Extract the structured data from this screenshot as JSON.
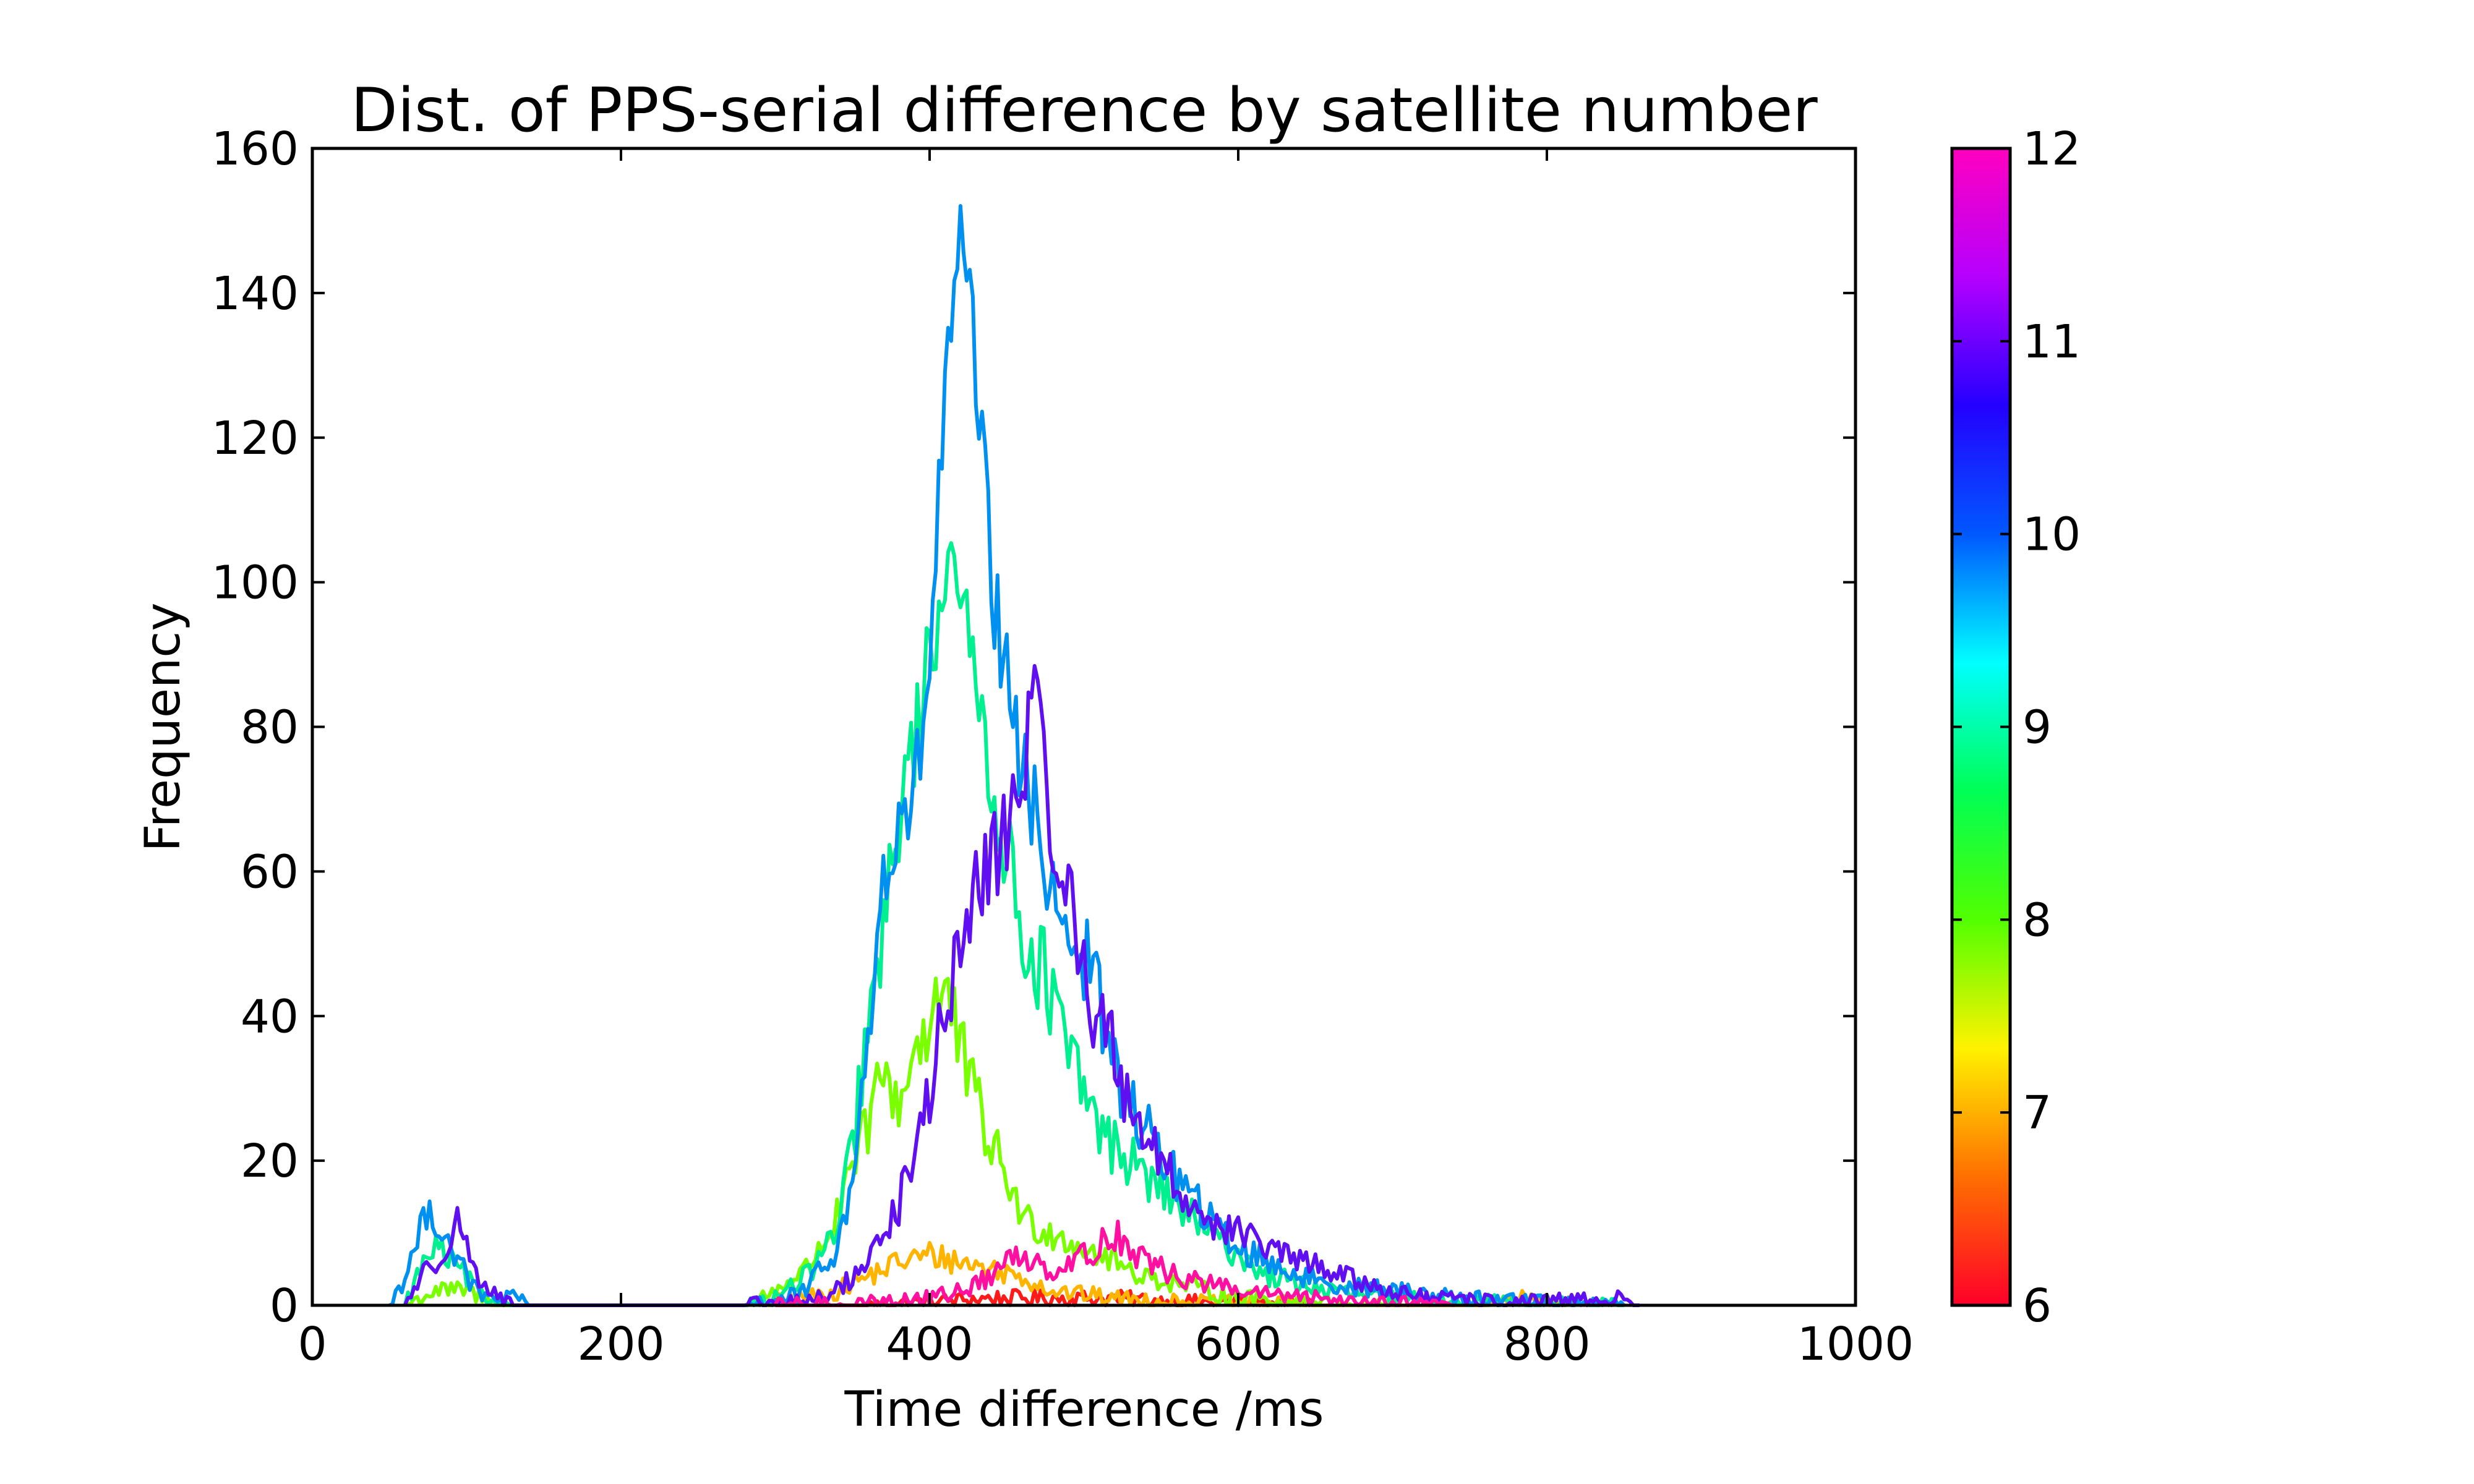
{
  "chart_data": {
    "type": "line",
    "title": "Dist. of PPS-serial difference by satellite number",
    "xlabel": "Time difference /ms",
    "ylabel": "Frequency",
    "xlim": [
      0,
      1000
    ],
    "ylim": [
      0,
      160
    ],
    "xticks": [
      "0",
      "200",
      "400",
      "600",
      "800",
      "1000"
    ],
    "yticks": [
      "0",
      "20",
      "40",
      "60",
      "80",
      "100",
      "120",
      "140",
      "160"
    ],
    "grid": false,
    "legend": "none",
    "colorbar": {
      "range": [
        6,
        12
      ],
      "ticks": [
        "6",
        "7",
        "8",
        "9",
        "10",
        "11",
        "12"
      ],
      "colormap": "gist_rainbow",
      "stops": [
        "#ff0029",
        "#ff6f00",
        "#fff200",
        "#52ff00",
        "#00ff55",
        "#00ffff",
        "#0058ff",
        "#2400ff",
        "#b500ff",
        "#ff00bf"
      ]
    },
    "series": [
      {
        "satellites": 6,
        "color": "#ff1a1a",
        "points": [
          [
            300,
            0
          ],
          [
            360,
            0
          ],
          [
            400,
            0.5
          ],
          [
            440,
            1
          ],
          [
            480,
            1
          ],
          [
            520,
            1
          ],
          [
            560,
            0.5
          ],
          [
            600,
            0.3
          ],
          [
            650,
            0
          ],
          [
            700,
            0
          ]
        ]
      },
      {
        "satellites": 7,
        "color": "#ffb400",
        "points": [
          [
            280,
            0
          ],
          [
            300,
            0.5
          ],
          [
            320,
            1
          ],
          [
            340,
            2
          ],
          [
            360,
            4
          ],
          [
            380,
            6
          ],
          [
            400,
            7
          ],
          [
            420,
            6
          ],
          [
            440,
            5
          ],
          [
            460,
            4
          ],
          [
            480,
            2
          ],
          [
            500,
            1.5
          ],
          [
            520,
            1
          ],
          [
            560,
            0.5
          ],
          [
            600,
            0.3
          ],
          [
            650,
            0
          ],
          [
            760,
            0
          ],
          [
            780,
            1
          ],
          [
            800,
            0.5
          ],
          [
            820,
            0
          ]
        ]
      },
      {
        "satellites": 8,
        "color": "#7aff00",
        "points": [
          [
            60,
            0
          ],
          [
            80,
            2
          ],
          [
            100,
            2
          ],
          [
            120,
            0
          ],
          [
            280,
            0
          ],
          [
            300,
            2
          ],
          [
            320,
            5
          ],
          [
            340,
            12
          ],
          [
            360,
            25
          ],
          [
            370,
            32
          ],
          [
            380,
            28
          ],
          [
            390,
            35
          ],
          [
            400,
            40
          ],
          [
            410,
            44
          ],
          [
            420,
            35
          ],
          [
            430,
            28
          ],
          [
            440,
            22
          ],
          [
            450,
            18
          ],
          [
            460,
            12
          ],
          [
            480,
            10
          ],
          [
            500,
            8
          ],
          [
            520,
            6
          ],
          [
            540,
            4
          ],
          [
            560,
            3
          ],
          [
            580,
            2
          ],
          [
            600,
            1
          ],
          [
            650,
            0.5
          ],
          [
            700,
            0
          ]
        ]
      },
      {
        "satellites": 9,
        "color": "#00f090",
        "points": [
          [
            60,
            0
          ],
          [
            70,
            5
          ],
          [
            80,
            8
          ],
          [
            90,
            6
          ],
          [
            100,
            4
          ],
          [
            110,
            1
          ],
          [
            130,
            0
          ],
          [
            280,
            0
          ],
          [
            300,
            1
          ],
          [
            320,
            4
          ],
          [
            340,
            10
          ],
          [
            350,
            22
          ],
          [
            360,
            38
          ],
          [
            370,
            50
          ],
          [
            380,
            68
          ],
          [
            390,
            78
          ],
          [
            400,
            90
          ],
          [
            410,
            100
          ],
          [
            415,
            112
          ],
          [
            420,
            96
          ],
          [
            430,
            86
          ],
          [
            440,
            74
          ],
          [
            450,
            62
          ],
          [
            460,
            52
          ],
          [
            470,
            48
          ],
          [
            480,
            42
          ],
          [
            490,
            34
          ],
          [
            500,
            30
          ],
          [
            510,
            24
          ],
          [
            520,
            22
          ],
          [
            540,
            18
          ],
          [
            560,
            14
          ],
          [
            580,
            10
          ],
          [
            600,
            7
          ],
          [
            620,
            4
          ],
          [
            640,
            3
          ],
          [
            660,
            2
          ],
          [
            700,
            1
          ],
          [
            750,
            0.5
          ],
          [
            800,
            0.3
          ],
          [
            850,
            0
          ]
        ]
      },
      {
        "satellites": 10,
        "color": "#0090f0",
        "points": [
          [
            50,
            0
          ],
          [
            60,
            4
          ],
          [
            70,
            10
          ],
          [
            75,
            14
          ],
          [
            80,
            12
          ],
          [
            90,
            8
          ],
          [
            100,
            4
          ],
          [
            110,
            1
          ],
          [
            130,
            1
          ],
          [
            140,
            0
          ],
          [
            280,
            0
          ],
          [
            300,
            0.5
          ],
          [
            320,
            2
          ],
          [
            340,
            8
          ],
          [
            350,
            16
          ],
          [
            360,
            38
          ],
          [
            370,
            58
          ],
          [
            380,
            64
          ],
          [
            390,
            70
          ],
          [
            400,
            88
          ],
          [
            405,
            108
          ],
          [
            410,
            126
          ],
          [
            415,
            136
          ],
          [
            420,
            146
          ],
          [
            425,
            140
          ],
          [
            430,
            128
          ],
          [
            435,
            116
          ],
          [
            440,
            100
          ],
          [
            450,
            86
          ],
          [
            460,
            74
          ],
          [
            470,
            66
          ],
          [
            480,
            58
          ],
          [
            490,
            52
          ],
          [
            500,
            48
          ],
          [
            510,
            42
          ],
          [
            520,
            32
          ],
          [
            530,
            28
          ],
          [
            540,
            24
          ],
          [
            560,
            18
          ],
          [
            580,
            12
          ],
          [
            600,
            8
          ],
          [
            620,
            6
          ],
          [
            640,
            4
          ],
          [
            660,
            3
          ],
          [
            700,
            2
          ],
          [
            750,
            1
          ],
          [
            800,
            0.5
          ],
          [
            850,
            0
          ]
        ]
      },
      {
        "satellites": 11,
        "color": "#6010f0",
        "points": [
          [
            60,
            0
          ],
          [
            70,
            4
          ],
          [
            80,
            6
          ],
          [
            90,
            10
          ],
          [
            95,
            12
          ],
          [
            100,
            8
          ],
          [
            110,
            3
          ],
          [
            120,
            1
          ],
          [
            130,
            0
          ],
          [
            280,
            0
          ],
          [
            320,
            0.5
          ],
          [
            340,
            2
          ],
          [
            360,
            6
          ],
          [
            370,
            10
          ],
          [
            380,
            14
          ],
          [
            390,
            20
          ],
          [
            400,
            30
          ],
          [
            410,
            40
          ],
          [
            420,
            50
          ],
          [
            430,
            56
          ],
          [
            440,
            62
          ],
          [
            450,
            66
          ],
          [
            460,
            72
          ],
          [
            465,
            84
          ],
          [
            470,
            80
          ],
          [
            480,
            66
          ],
          [
            490,
            56
          ],
          [
            500,
            46
          ],
          [
            510,
            40
          ],
          [
            520,
            34
          ],
          [
            530,
            28
          ],
          [
            540,
            24
          ],
          [
            550,
            20
          ],
          [
            560,
            16
          ],
          [
            580,
            12
          ],
          [
            600,
            10
          ],
          [
            620,
            8
          ],
          [
            640,
            6
          ],
          [
            660,
            5
          ],
          [
            680,
            3
          ],
          [
            700,
            2
          ],
          [
            720,
            1
          ],
          [
            760,
            0.5
          ],
          [
            800,
            0.5
          ],
          [
            850,
            1
          ],
          [
            860,
            0
          ]
        ]
      },
      {
        "satellites": 12,
        "color": "#ff10a0",
        "points": [
          [
            300,
            0
          ],
          [
            360,
            0.3
          ],
          [
            400,
            1
          ],
          [
            420,
            2
          ],
          [
            440,
            4
          ],
          [
            450,
            6
          ],
          [
            460,
            7
          ],
          [
            470,
            6
          ],
          [
            480,
            5
          ],
          [
            490,
            6
          ],
          [
            500,
            7
          ],
          [
            510,
            8
          ],
          [
            520,
            10
          ],
          [
            530,
            8
          ],
          [
            540,
            6
          ],
          [
            560,
            4
          ],
          [
            580,
            3
          ],
          [
            600,
            2
          ],
          [
            640,
            1
          ],
          [
            700,
            0.5
          ],
          [
            740,
            0
          ]
        ]
      }
    ]
  }
}
